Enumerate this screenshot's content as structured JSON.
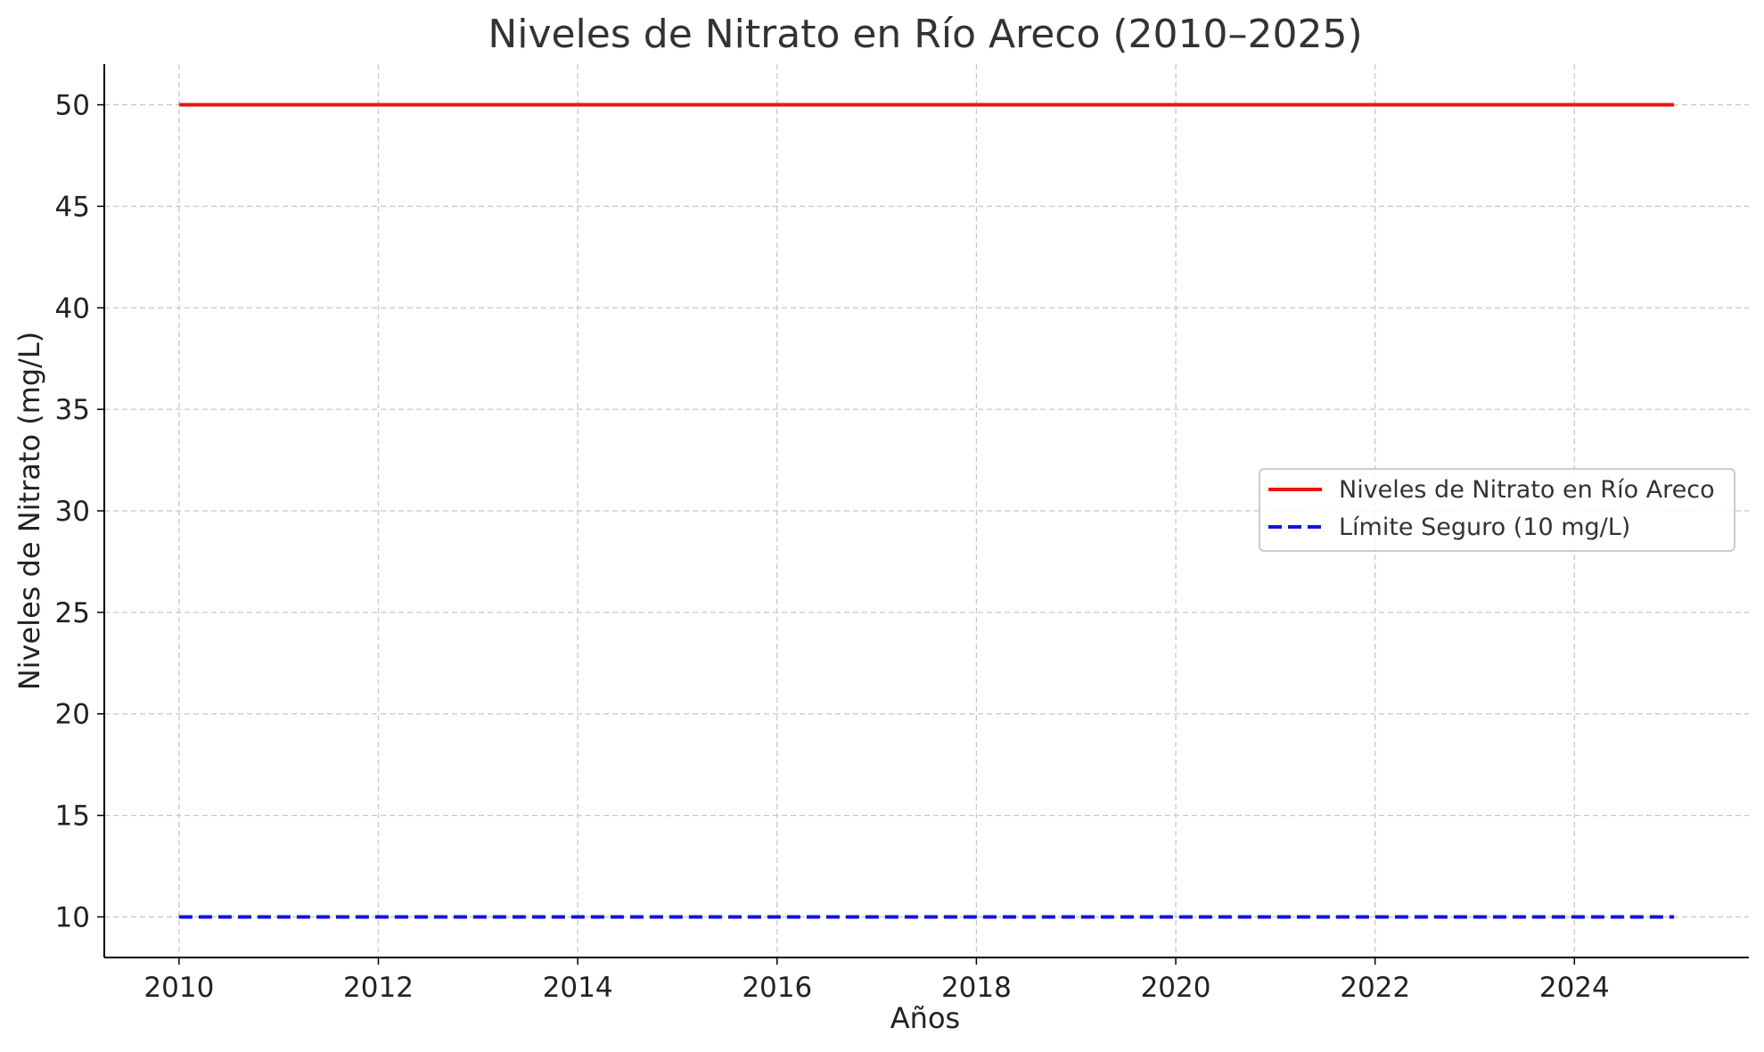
{
  "chart_data": {
    "type": "line",
    "title": "Niveles de Nitrato en Río Areco (2010–2025)",
    "xlabel": "Años",
    "ylabel": "Niveles de Nitrato (mg/L)",
    "xlim": [
      2009.25,
      2025.75
    ],
    "ylim": [
      8,
      52
    ],
    "xticks": [
      2010,
      2012,
      2014,
      2016,
      2018,
      2020,
      2022,
      2024
    ],
    "yticks": [
      10,
      15,
      20,
      25,
      30,
      35,
      40,
      45,
      50
    ],
    "grid": true,
    "legend_position": "center-right",
    "series": [
      {
        "name": "Niveles de Nitrato en Río Areco",
        "color": "#ee1111",
        "style": "solid",
        "x": [
          2010,
          2011,
          2012,
          2013,
          2014,
          2015,
          2016,
          2017,
          2018,
          2019,
          2020,
          2021,
          2022,
          2023,
          2024,
          2025
        ],
        "y": [
          50,
          50,
          50,
          50,
          50,
          50,
          50,
          50,
          50,
          50,
          50,
          50,
          50,
          50,
          50,
          50
        ]
      },
      {
        "name": "Límite Seguro (10 mg/L)",
        "color": "#1111ee",
        "style": "dashed",
        "x": [
          2010,
          2025
        ],
        "y": [
          10,
          10
        ]
      }
    ]
  }
}
